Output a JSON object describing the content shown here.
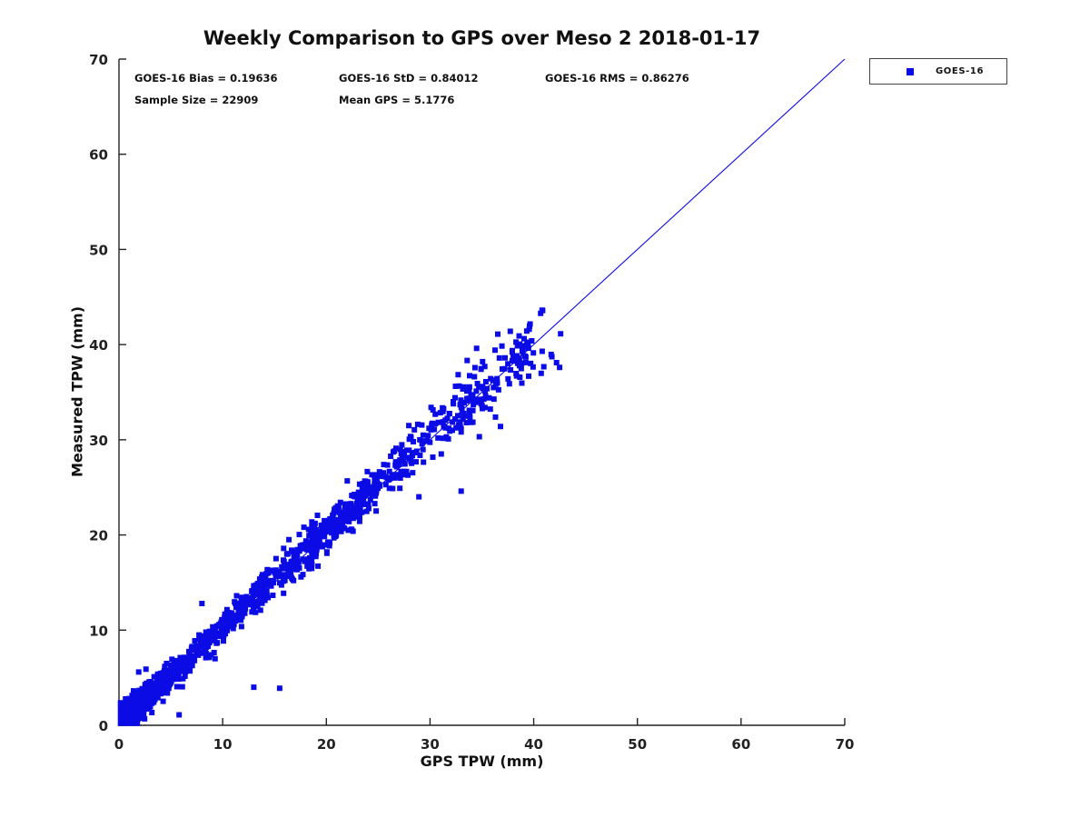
{
  "title": "Weekly Comparison to GPS over Meso 2 2018-01-17",
  "stats": {
    "bias": "GOES-16 Bias = 0.19636",
    "std": "GOES-16 StD = 0.84012",
    "rms": "GOES-16 RMS = 0.86276",
    "sample_size": "Sample Size = 22909",
    "mean_gps": "Mean GPS = 5.1776"
  },
  "legend": {
    "entries": [
      {
        "label": "GOES-16",
        "marker": "filled-square",
        "color": "#0b0be6"
      }
    ]
  },
  "chart_data": {
    "type": "scatter",
    "title": "Weekly Comparison to GPS over Meso 2 2018-01-17",
    "xlabel": "GPS TPW (mm)",
    "ylabel": "Measured TPW (mm)",
    "xlim": [
      0,
      70
    ],
    "ylim": [
      0,
      70
    ],
    "xticks": [
      0,
      10,
      20,
      30,
      40,
      50,
      60,
      70
    ],
    "yticks": [
      0,
      10,
      20,
      30,
      40,
      50,
      60,
      70
    ],
    "grid": false,
    "legend_position": "top-right-outside",
    "series": [
      {
        "name": "GOES-16",
        "marker": "filled-square",
        "color": "#0b0be6",
        "sample_size": 22909,
        "bias": 0.19636,
        "std": 0.84012,
        "rms": 0.86276,
        "mean_gps": 5.1776,
        "x_range_of_data": [
          0.2,
          42.6
        ],
        "y_range_of_data": [
          0.9,
          42.2
        ],
        "relationship": "y approximately equals x + 0.196 with std 0.84"
      }
    ],
    "identity_line": {
      "from": [
        0,
        0
      ],
      "to": [
        70,
        70
      ],
      "color": "#0b0be6"
    },
    "scatter_generator": {
      "seed": 20180117,
      "marker_px": 6,
      "segments": [
        {
          "count": 950,
          "x": {
            "dist": "absgauss",
            "mean": 1.7,
            "std": 1.7,
            "min": 0.15,
            "max": 9.5
          },
          "y_bias": 0.25,
          "y_std": 0.65
        },
        {
          "count": 240,
          "x": {
            "dist": "uniform",
            "min": 4.0,
            "max": 12.0
          },
          "y_bias": 0.3,
          "y_std": 0.8
        },
        {
          "count": 130,
          "x": {
            "dist": "gauss",
            "mean": 13.6,
            "std": 1.0,
            "min": 11.6,
            "max": 16.0
          },
          "y_bias": 0.45,
          "y_std": 0.9
        },
        {
          "count": 110,
          "x": {
            "dist": "uniform",
            "min": 15.6,
            "max": 19.2
          },
          "y_bias": 0.3,
          "y_std": 1.05
        },
        {
          "count": 300,
          "x": {
            "dist": "gauss",
            "mean": 22.2,
            "std": 2.3,
            "min": 18.6,
            "max": 27.5
          },
          "y_bias": 0.4,
          "y_std": 1.0
        },
        {
          "count": 120,
          "x": {
            "dist": "uniform",
            "min": 26.5,
            "max": 34.0
          },
          "y_bias": 0.35,
          "y_std": 1.35
        },
        {
          "count": 115,
          "x": {
            "dist": "gauss",
            "mean": 37.3,
            "std": 2.4,
            "min": 33.0,
            "max": 42.6
          },
          "y_bias": 0.2,
          "y_std": 1.9
        }
      ],
      "extra_points": [
        [
          13.0,
          4.0
        ],
        [
          15.5,
          3.9
        ],
        [
          5.8,
          1.1
        ],
        [
          8.0,
          12.8
        ],
        [
          33.0,
          24.6
        ],
        [
          42.5,
          37.6
        ],
        [
          42.2,
          38.1
        ],
        [
          36.8,
          31.4
        ],
        [
          2.6,
          5.9
        ],
        [
          1.9,
          5.6
        ]
      ]
    }
  }
}
